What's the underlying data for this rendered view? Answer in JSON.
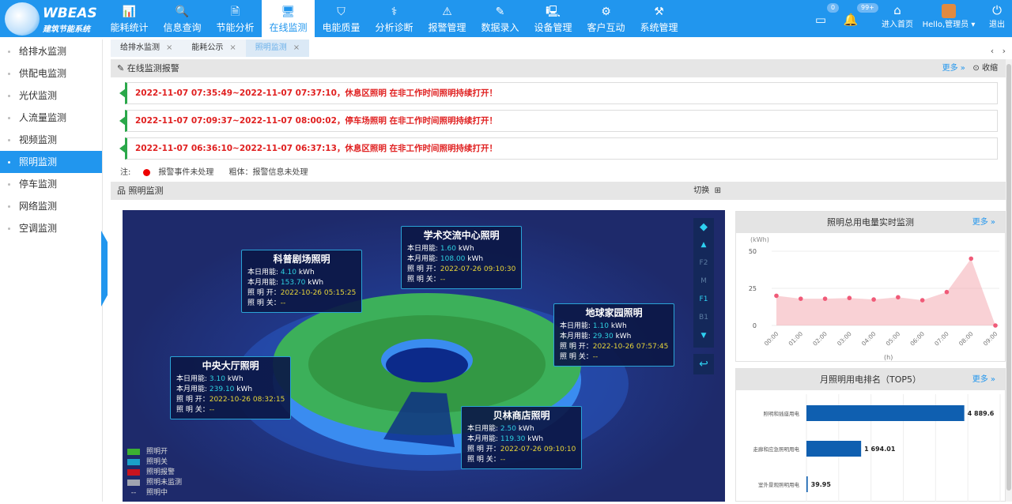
{
  "header": {
    "logo_title": "WBEAS",
    "logo_subtitle": "建筑节能系统",
    "nav": [
      {
        "label": "能耗统计",
        "icon": "bar-chart-icon"
      },
      {
        "label": "信息查询",
        "icon": "search-doc-icon"
      },
      {
        "label": "节能分析",
        "icon": "analysis-icon"
      },
      {
        "label": "在线监测",
        "icon": "monitor-icon",
        "active": true
      },
      {
        "label": "电能质量",
        "icon": "shield-bolt-icon"
      },
      {
        "label": "分析诊断",
        "icon": "diagnose-icon"
      },
      {
        "label": "报警管理",
        "icon": "alarm-icon"
      },
      {
        "label": "数据录入",
        "icon": "edit-icon"
      },
      {
        "label": "设备管理",
        "icon": "device-icon"
      },
      {
        "label": "客户互动",
        "icon": "gears-icon"
      },
      {
        "label": "系统管理",
        "icon": "settings-icon"
      }
    ],
    "messages_count": "0",
    "notifications_count": "99+",
    "home_label": "进入首页",
    "user_label": "Hello,管理员",
    "logout_label": "退出"
  },
  "sidebar": {
    "items": [
      "给排水监测",
      "供配电监测",
      "光伏监测",
      "人流量监测",
      "视频监测",
      "照明监测",
      "停车监测",
      "网络监测",
      "空调监测"
    ],
    "active": "照明监测"
  },
  "tabs": [
    {
      "label": "给排水监测"
    },
    {
      "label": "能耗公示"
    },
    {
      "label": "照明监测",
      "active": true
    }
  ],
  "alarm_panel": {
    "title": "在线监测报警",
    "more": "更多 »",
    "collapse": "收缩",
    "alarms": [
      "2022-11-07 07:35:49~2022-11-07 07:37:10，休息区照明 在非工作时间照明持续打开！",
      "2022-11-07 07:09:37~2022-11-07 08:00:02，停车场照明 在非工作时间照明持续打开！",
      "2022-11-07 06:36:10~2022-11-07 06:37:13，休息区照明 在非工作时间照明持续打开！"
    ],
    "note_label": "注:",
    "note_dot": "报警事件未处理",
    "note_bold": "粗体：报警信息未处理"
  },
  "light_panel": {
    "title": "照明监测",
    "switch_label": "切换"
  },
  "map": {
    "popups": [
      {
        "name": "科普剧场照明",
        "day_label": "本日用能:",
        "day": "4.10",
        "month_label": "本月用能:",
        "month": "153.70",
        "unit": "kWh",
        "on_label": "照 明 开：",
        "on": "2022-10-26 05:15:25",
        "off_label": "照 明 关：",
        "off": "--"
      },
      {
        "name": "学术交流中心照明",
        "day_label": "本日用能:",
        "day": "1.60",
        "month_label": "本月用能:",
        "month": "108.00",
        "unit": "kWh",
        "on_label": "照 明 开：",
        "on": "2022-07-26 09:10:30",
        "off_label": "照 明 关：",
        "off": "--"
      },
      {
        "name": "地球家园照明",
        "day_label": "本日用能:",
        "day": "1.10",
        "month_label": "本月用能:",
        "month": "29.30",
        "unit": "kWh",
        "on_label": "照 明 开：",
        "on": "2022-10-26 07:57:45",
        "off_label": "照 明 关：",
        "off": "--"
      },
      {
        "name": "中央大厅照明",
        "day_label": "本日用能:",
        "day": "3.10",
        "month_label": "本月用能:",
        "month": "239.10",
        "unit": "kWh",
        "on_label": "照 明 开：",
        "on": "2022-10-26 08:32:15",
        "off_label": "照 明 关：",
        "off": "--"
      },
      {
        "name": "贝林商店照明",
        "day_label": "本日用能:",
        "day": "2.50",
        "month_label": "本月用能:",
        "month": "119.30",
        "unit": "kWh",
        "on_label": "照 明 开：",
        "on": "2022-07-26 09:10:10",
        "off_label": "照 明 关：",
        "off": "--"
      }
    ],
    "legend": [
      {
        "label": "照明开",
        "color": "#3cb032"
      },
      {
        "label": "照明关",
        "color": "#1aa0c8"
      },
      {
        "label": "照明报警",
        "color": "#c8141e"
      },
      {
        "label": "照明未监测",
        "color": "#a0a4b0"
      },
      {
        "label": "照明中",
        "symbol": "--"
      }
    ],
    "floors": [
      "F2",
      "M",
      "F1",
      "B1"
    ],
    "active_floor": "F1"
  },
  "chart_data": [
    {
      "type": "area",
      "title": "照明总用电量实时监测",
      "more": "更多 »",
      "ylabel": "(kWh)",
      "xlabel": "(h)",
      "ylim": [
        0,
        50
      ],
      "yticks": [
        0,
        25,
        50
      ],
      "x": [
        "00:00",
        "01:00",
        "02:00",
        "03:00",
        "04:00",
        "05:00",
        "06:00",
        "07:00",
        "08:00",
        "09:00"
      ],
      "values": [
        20,
        18,
        18,
        18.5,
        17.5,
        19,
        17,
        22.5,
        45,
        0
      ],
      "color": "#f08c96"
    },
    {
      "type": "bar",
      "orientation": "horizontal",
      "title": "月照明用电排名（TOP5）",
      "more": "更多 »",
      "categories": [
        "照明和插座用电",
        "走廊和应急照明用电",
        "室外景观照明用电"
      ],
      "values": [
        4889.6,
        1694.01,
        39.95
      ],
      "labels": [
        "4 889.6",
        "1 694.01",
        "39.95"
      ],
      "xlim": [
        0,
        6000
      ],
      "color": "#0f5fb0"
    }
  ]
}
